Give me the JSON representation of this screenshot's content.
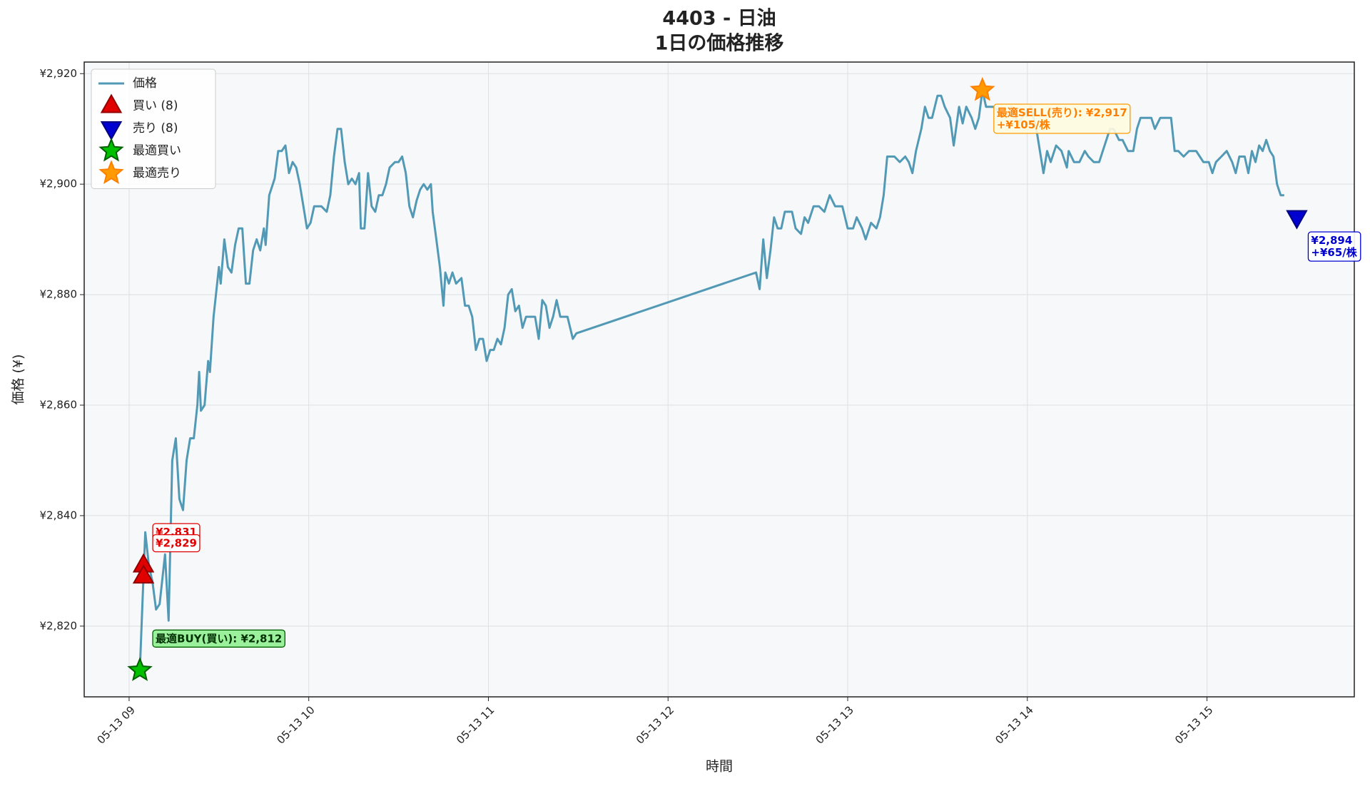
{
  "chart_data": {
    "type": "line",
    "title": "4403 - 日油",
    "subtitle": "1日の価格推移",
    "x_label": "時間",
    "y_label": "価格 (¥)",
    "grid": true,
    "legend": "upper left",
    "xlim": [
      8.75,
      15.82
    ],
    "xticks": [
      {
        "value": 9,
        "label": "05-13 09"
      },
      {
        "value": 10,
        "label": "05-13 10"
      },
      {
        "value": 11,
        "label": "05-13 11"
      },
      {
        "value": 12,
        "label": "05-13 12"
      },
      {
        "value": 13,
        "label": "05-13 13"
      },
      {
        "value": 14,
        "label": "05-13 14"
      },
      {
        "value": 15,
        "label": "05-13 15"
      }
    ],
    "ylim": [
      2807.2,
      2922.1
    ],
    "yticks": [
      {
        "value": 2820,
        "label": "¥2,820"
      },
      {
        "value": 2840,
        "label": "¥2,840"
      },
      {
        "value": 2860,
        "label": "¥2,860"
      },
      {
        "value": 2880,
        "label": "¥2,880"
      },
      {
        "value": 2900,
        "label": "¥2,900"
      },
      {
        "value": 2920,
        "label": "¥2,920"
      }
    ],
    "x": [
      9.06,
      9.08,
      9.09,
      9.11,
      9.13,
      9.15,
      9.17,
      9.2,
      9.22,
      9.24,
      9.26,
      9.28,
      9.3,
      9.32,
      9.34,
      9.36,
      9.38,
      9.39,
      9.4,
      9.42,
      9.44,
      9.45,
      9.47,
      9.49,
      9.5,
      9.51,
      9.53,
      9.55,
      9.57,
      9.59,
      9.61,
      9.63,
      9.65,
      9.67,
      9.69,
      9.71,
      9.73,
      9.75,
      9.76,
      9.78,
      9.81,
      9.83,
      9.85,
      9.87,
      9.89,
      9.91,
      9.93,
      9.95,
      9.97,
      9.99,
      10.01,
      10.03,
      10.07,
      10.1,
      10.12,
      10.14,
      10.16,
      10.18,
      10.2,
      10.22,
      10.24,
      10.26,
      10.28,
      10.29,
      10.31,
      10.33,
      10.35,
      10.37,
      10.39,
      10.41,
      10.43,
      10.45,
      10.48,
      10.5,
      10.52,
      10.54,
      10.56,
      10.58,
      10.6,
      10.62,
      10.64,
      10.66,
      10.68,
      10.69,
      10.71,
      10.73,
      10.75,
      10.76,
      10.78,
      10.8,
      10.82,
      10.85,
      10.87,
      10.89,
      10.91,
      10.93,
      10.95,
      10.97,
      10.99,
      11.01,
      11.03,
      11.05,
      11.07,
      11.09,
      11.11,
      11.13,
      11.15,
      11.17,
      11.19,
      11.21,
      11.24,
      11.26,
      11.28,
      11.3,
      11.32,
      11.34,
      11.36,
      11.38,
      11.4,
      11.44,
      11.47,
      11.49,
      12.49,
      12.51,
      12.53,
      12.55,
      12.57,
      12.59,
      12.61,
      12.63,
      12.65,
      12.69,
      12.71,
      12.74,
      12.76,
      12.78,
      12.81,
      12.84,
      12.87,
      12.9,
      12.93,
      12.97,
      13.0,
      13.03,
      13.05,
      13.08,
      13.1,
      13.13,
      13.16,
      13.18,
      13.2,
      13.22,
      13.26,
      13.29,
      13.32,
      13.34,
      13.36,
      13.38,
      13.41,
      13.43,
      13.45,
      13.47,
      13.5,
      13.52,
      13.54,
      13.57,
      13.59,
      13.62,
      13.64,
      13.66,
      13.69,
      13.71,
      13.73,
      13.75,
      13.77,
      13.81,
      13.85,
      13.88,
      13.91,
      13.95,
      13.99,
      14.02,
      14.05,
      14.07,
      14.09,
      14.11,
      14.13,
      14.16,
      14.19,
      14.22,
      14.23,
      14.26,
      14.29,
      14.32,
      14.34,
      14.37,
      14.4,
      14.42,
      14.46,
      14.48,
      14.51,
      14.53,
      14.56,
      14.59,
      14.61,
      14.63,
      14.66,
      14.69,
      14.71,
      14.74,
      14.77,
      14.8,
      14.82,
      14.84,
      14.87,
      14.9,
      14.94,
      14.96,
      14.98,
      15.01,
      15.03,
      15.05,
      15.08,
      15.11,
      15.14,
      15.16,
      15.18,
      15.21,
      15.23,
      15.25,
      15.27,
      15.29,
      15.31,
      15.33,
      15.35,
      15.37,
      15.39,
      15.41,
      15.43
    ],
    "series": [
      {
        "name": "価格",
        "color": "#5299b5",
        "values": [
          2812,
          2829,
          2837,
          2831,
          2828,
          2823,
          2824,
          2833,
          2821,
          2850,
          2854,
          2843,
          2841,
          2850,
          2854,
          2854,
          2860,
          2866,
          2859,
          2860,
          2868,
          2866,
          2876,
          2882,
          2885,
          2882,
          2890,
          2885,
          2884,
          2889,
          2892,
          2892,
          2882,
          2882,
          2888,
          2890,
          2888,
          2892,
          2889,
          2898,
          2901,
          2906,
          2906,
          2907,
          2902,
          2904,
          2903,
          2900,
          2896,
          2892,
          2893,
          2896,
          2896,
          2895,
          2898,
          2905,
          2910,
          2910,
          2904,
          2900,
          2901,
          2900,
          2902,
          2892,
          2892,
          2902,
          2896,
          2895,
          2898,
          2898,
          2900,
          2903,
          2904,
          2904,
          2905,
          2902,
          2896,
          2894,
          2897,
          2899,
          2900,
          2899,
          2900,
          2895,
          2890,
          2885,
          2878,
          2884,
          2882,
          2884,
          2882,
          2883,
          2878,
          2878,
          2876,
          2870,
          2872,
          2872,
          2868,
          2870,
          2870,
          2872,
          2871,
          2874,
          2880,
          2881,
          2877,
          2878,
          2874,
          2876,
          2876,
          2876,
          2872,
          2879,
          2878,
          2874,
          2876,
          2879,
          2876,
          2876,
          2872,
          2873,
          2884,
          2881,
          2890,
          2883,
          2888,
          2894,
          2892,
          2892,
          2895,
          2895,
          2892,
          2891,
          2894,
          2893,
          2896,
          2896,
          2895,
          2898,
          2896,
          2896,
          2892,
          2892,
          2894,
          2892,
          2890,
          2893,
          2892,
          2894,
          2898,
          2905,
          2905,
          2904,
          2905,
          2904,
          2902,
          2906,
          2910,
          2914,
          2912,
          2912,
          2916,
          2916,
          2914,
          2912,
          2907,
          2914,
          2911,
          2914,
          2912,
          2910,
          2912,
          2917,
          2914,
          2914,
          2913,
          2912,
          2914,
          2911,
          2913,
          2914,
          2910,
          2906,
          2902,
          2906,
          2904,
          2907,
          2906,
          2903,
          2906,
          2904,
          2904,
          2906,
          2905,
          2904,
          2904,
          2906,
          2910,
          2910,
          2908,
          2908,
          2906,
          2906,
          2910,
          2912,
          2912,
          2912,
          2910,
          2912,
          2912,
          2912,
          2906,
          2906,
          2905,
          2906,
          2906,
          2905,
          2904,
          2904,
          2902,
          2904,
          2905,
          2906,
          2904,
          2902,
          2905,
          2905,
          2902,
          2906,
          2904,
          2907,
          2906,
          2908,
          2906,
          2905,
          2900,
          2898,
          2898
        ]
      }
    ],
    "markers": [
      {
        "name": "買い (8)",
        "marker": "triangle-up",
        "color": "#e00000",
        "x": [
          9.08,
          9.08
        ],
        "values": [
          2831,
          2829
        ],
        "value_labels": [
          "¥2,831",
          "¥2,829"
        ]
      },
      {
        "name": "売り (8)",
        "marker": "triangle-down",
        "color": "#0000d0",
        "x": [
          15.5
        ],
        "values": [
          2894
        ],
        "value_labels": [
          "¥2,894"
        ],
        "profit_labels": [
          "+¥65/株"
        ]
      },
      {
        "name": "最適買い",
        "marker": "star",
        "color": "#00c000",
        "x": [
          9.06
        ],
        "values": [
          2812
        ],
        "value_labels": [
          "最適BUY(買い): ¥2,812"
        ]
      },
      {
        "name": "最適売り",
        "marker": "star",
        "color": "#ff9a00",
        "x": [
          13.75
        ],
        "values": [
          2917
        ],
        "value_labels": [
          "最適SELL(売り): ¥2,917"
        ],
        "profit_labels": [
          "+¥105/株"
        ]
      }
    ]
  }
}
